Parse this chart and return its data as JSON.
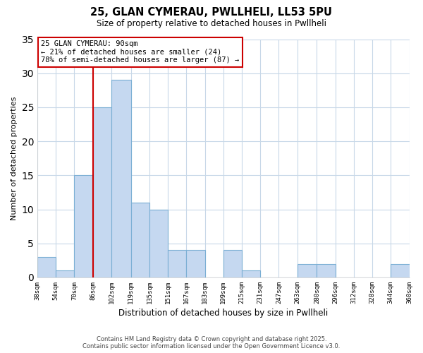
{
  "title": "25, GLAN CYMERAU, PWLLHELI, LL53 5PU",
  "subtitle": "Size of property relative to detached houses in Pwllheli",
  "xlabel": "Distribution of detached houses by size in Pwllheli",
  "ylabel": "Number of detached properties",
  "bins": [
    38,
    54,
    70,
    86,
    102,
    119,
    135,
    151,
    167,
    183,
    199,
    215,
    231,
    247,
    263,
    280,
    296,
    312,
    328,
    344,
    360
  ],
  "bin_labels": [
    "38sqm",
    "54sqm",
    "70sqm",
    "86sqm",
    "102sqm",
    "119sqm",
    "135sqm",
    "151sqm",
    "167sqm",
    "183sqm",
    "199sqm",
    "215sqm",
    "231sqm",
    "247sqm",
    "263sqm",
    "280sqm",
    "296sqm",
    "312sqm",
    "328sqm",
    "344sqm",
    "360sqm"
  ],
  "counts": [
    3,
    1,
    15,
    25,
    29,
    11,
    10,
    4,
    4,
    0,
    4,
    1,
    0,
    0,
    2,
    2,
    0,
    0,
    0,
    2
  ],
  "bar_color": "#c5d8f0",
  "bar_edge_color": "#7bafd4",
  "vline_x": 86,
  "vline_color": "#cc0000",
  "annotation_lines": [
    "25 GLAN CYMERAU: 90sqm",
    "← 21% of detached houses are smaller (24)",
    "78% of semi-detached houses are larger (87) →"
  ],
  "ylim": [
    0,
    35
  ],
  "yticks": [
    0,
    5,
    10,
    15,
    20,
    25,
    30,
    35
  ],
  "footer_line1": "Contains HM Land Registry data © Crown copyright and database right 2025.",
  "footer_line2": "Contains public sector information licensed under the Open Government Licence v3.0.",
  "bg_color": "#ffffff",
  "grid_color": "#c8d8e8"
}
